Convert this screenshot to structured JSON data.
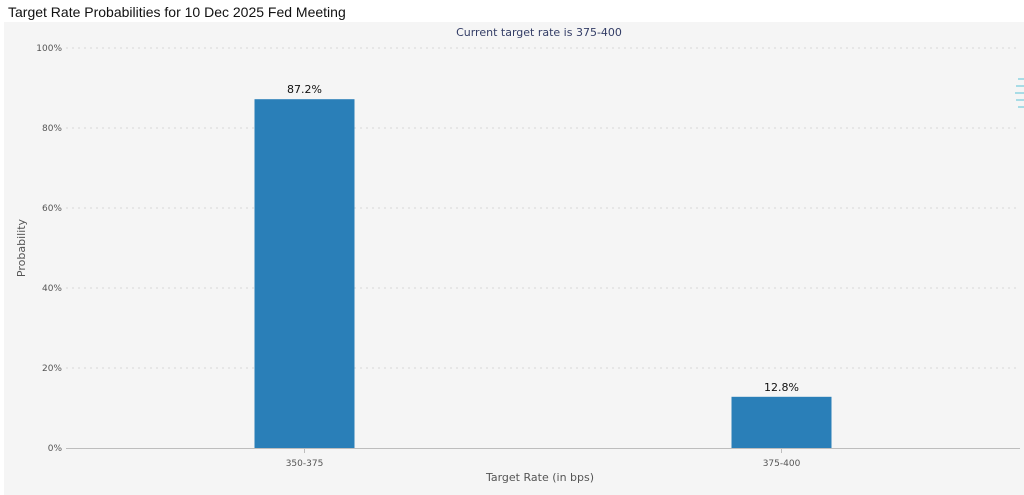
{
  "page": {
    "title": "Target Rate Probabilities for 10 Dec 2025 Fed Meeting"
  },
  "chart_data": {
    "type": "bar",
    "title": "Target Rate Probabilities for 10 Dec 2025 Fed Meeting",
    "subtitle": "Current target rate is 375-400",
    "xlabel": "Target Rate (in bps)",
    "ylabel": "Probability",
    "categories": [
      "350-375",
      "375-400"
    ],
    "values": [
      87.2,
      12.8
    ],
    "data_labels": [
      "87.2%",
      "12.8%"
    ],
    "ylim": [
      0,
      100
    ],
    "yticks": [
      "0%",
      "20%",
      "40%",
      "60%",
      "80%",
      "100%"
    ],
    "grid": true,
    "legend": "none",
    "colors": {
      "bar": "#2a7fb8",
      "grid": "#d6d6d6",
      "axis_text": "#555555",
      "subtitle_text": "#333d66",
      "background": "#f5f5f5"
    }
  }
}
